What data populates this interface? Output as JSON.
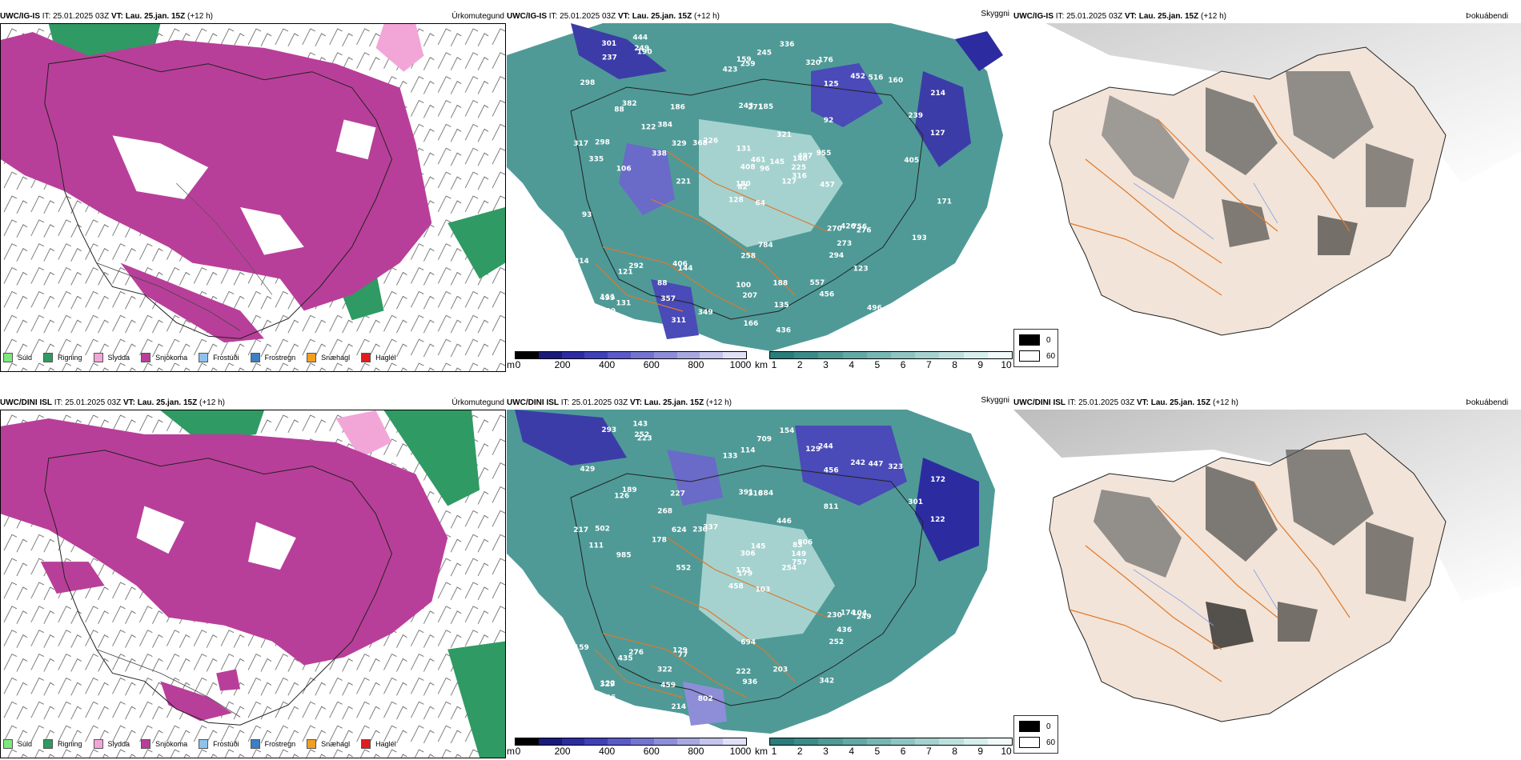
{
  "rows": [
    {
      "model": "UWC/IG-IS",
      "it_label": "IT:",
      "it_value": "25.01.2025 03Z",
      "vt_label": "VT:",
      "vt_value": "Lau. 25.jan. 15Z",
      "lead": "(+12 h)",
      "precip_title": "Úrkomutegund",
      "cloud_title": "Skyggni",
      "fog_title": "Þokuábendi"
    },
    {
      "model": "UWC/DINI ISL",
      "it_label": "IT:",
      "it_value": "25.01.2025 03Z",
      "vt_label": "VT:",
      "vt_value": "Lau. 25.jan. 15Z",
      "lead": "(+12 h)",
      "precip_title": "Úrkomutegund",
      "cloud_title": "Skyggni",
      "fog_title": "Þokuábendi"
    }
  ],
  "precip_legend": [
    {
      "label": "Súld",
      "color": "#7ee87e"
    },
    {
      "label": "Rigning",
      "color": "#2f9a63"
    },
    {
      "label": "Slydda",
      "color": "#f2a6d8"
    },
    {
      "label": "Snjókoma",
      "color": "#b83f99"
    },
    {
      "label": "Frostúði",
      "color": "#8fc1ee"
    },
    {
      "label": "Frostregn",
      "color": "#3b7fc4"
    },
    {
      "label": "Snæhagl",
      "color": "#f0a020"
    },
    {
      "label": "Haglél",
      "color": "#e01c1c"
    }
  ],
  "cloudbase_bar": {
    "unit": "m",
    "ticks": [
      "0",
      "200",
      "400",
      "600",
      "800",
      "1000"
    ],
    "colors": [
      "#000000",
      "#1a1a7a",
      "#2c2ca0",
      "#4040b8",
      "#5a5ac8",
      "#7474d0",
      "#8e8ed8",
      "#a8a8e0",
      "#c4c4ec",
      "#e0e0f6"
    ]
  },
  "visibility_bar": {
    "unit": "km",
    "ticks": [
      "1",
      "2",
      "3",
      "4",
      "5",
      "6",
      "7",
      "8",
      "9",
      "10"
    ],
    "colors": [
      "#2a7d7a",
      "#3c8b88",
      "#4f9a97",
      "#63a8a5",
      "#78b6b3",
      "#8ec4c1",
      "#a5d2cf",
      "#bde0de",
      "#d6eeec",
      "#f0faf9"
    ]
  },
  "fog_legend": {
    "values": [
      "0",
      "60"
    ],
    "colors": [
      "#000000",
      "#ffffff"
    ]
  },
  "cloud_labels_top": [
    "64",
    "88",
    "82",
    "111",
    "140",
    "144",
    "176",
    "185",
    "125",
    "127",
    "190",
    "170",
    "106",
    "214",
    "128",
    "92",
    "203",
    "243",
    "321",
    "292",
    "226",
    "309",
    "357",
    "271",
    "497",
    "276",
    "382",
    "259",
    "335",
    "270",
    "127",
    "180",
    "100",
    "408",
    "186",
    "452",
    "406",
    "171",
    "308",
    "756",
    "336",
    "368",
    "338",
    "294",
    "311",
    "317",
    "225",
    "425",
    "207",
    "316",
    "121",
    "239",
    "298",
    "273",
    "456",
    "88",
    "249",
    "301",
    "188",
    "160",
    "245",
    "221",
    "298",
    "384",
    "516",
    "444",
    "320",
    "423",
    "461",
    "314",
    "258",
    "349",
    "426",
    "329",
    "499",
    "237",
    "122",
    "93",
    "131",
    "135",
    "145",
    "131",
    "457",
    "193",
    "166",
    "405",
    "784",
    "496",
    "436",
    "557",
    "159",
    "171",
    "955",
    "123",
    "96"
  ],
  "cloud_labels_bottom": [
    "103",
    "126",
    "179",
    "122",
    "83",
    "77",
    "244",
    "384",
    "456",
    "254",
    "223",
    "505",
    "985",
    "172",
    "458",
    "811",
    "320",
    "391",
    "446",
    "276",
    "337",
    "406",
    "459",
    "316",
    "806",
    "249",
    "189",
    "114",
    "111",
    "230",
    "122",
    "173",
    "222",
    "306",
    "227",
    "242",
    "129",
    "100",
    "115",
    "104",
    "154",
    "230",
    "178",
    "252",
    "214",
    "217",
    "149",
    "337",
    "936",
    "757",
    "435",
    "301",
    "429",
    "436",
    "342",
    "322",
    "252",
    "293",
    "203",
    "323",
    "709",
    "552",
    "502",
    "268",
    "447",
    "143",
    "129",
    "133",
    "145",
    "159",
    "694",
    "802",
    "174",
    "624",
    "329"
  ]
}
